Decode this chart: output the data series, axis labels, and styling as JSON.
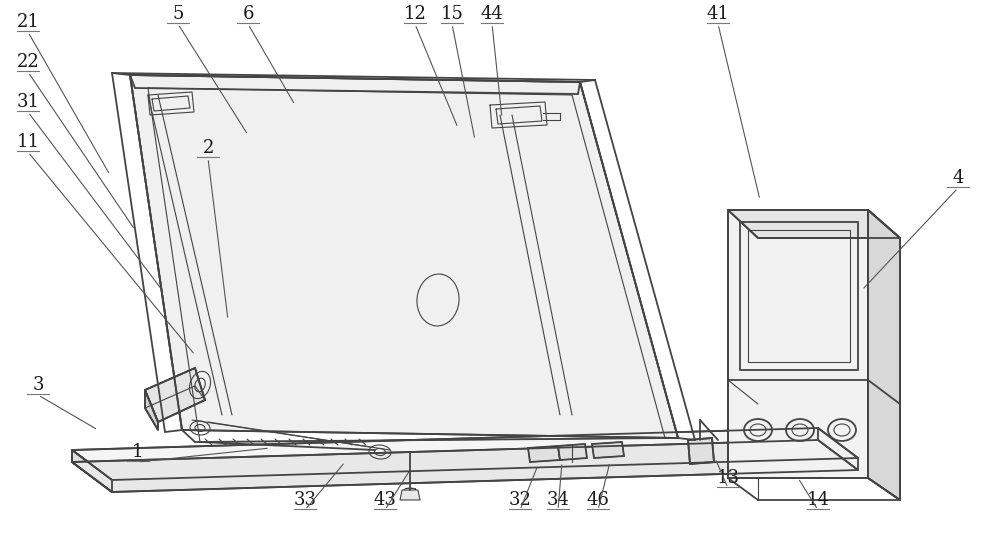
{
  "bg_color": "#ffffff",
  "lc": "#444444",
  "lw": 1.3,
  "lw_thin": 0.8,
  "figsize": [
    10.0,
    5.58
  ],
  "dpi": 100,
  "label_fontsize": 13,
  "label_color": "#1a1a1a",
  "ul_color": "#777777",
  "ld_color": "#555555",
  "labels": [
    [
      "21",
      28,
      22,
      110,
      175
    ],
    [
      "22",
      28,
      62,
      135,
      230
    ],
    [
      "31",
      28,
      102,
      162,
      290
    ],
    [
      "11",
      28,
      142,
      195,
      355
    ],
    [
      "5",
      178,
      14,
      248,
      135
    ],
    [
      "6",
      248,
      14,
      295,
      105
    ],
    [
      "12",
      415,
      14,
      458,
      128
    ],
    [
      "15",
      452,
      14,
      475,
      140
    ],
    [
      "44",
      492,
      14,
      502,
      118
    ],
    [
      "41",
      718,
      14,
      760,
      200
    ],
    [
      "2",
      208,
      148,
      228,
      320
    ],
    [
      "4",
      958,
      178,
      862,
      290
    ],
    [
      "3",
      38,
      385,
      98,
      430
    ],
    [
      "1",
      138,
      452,
      270,
      448
    ],
    [
      "33",
      305,
      500,
      345,
      462
    ],
    [
      "43",
      385,
      500,
      410,
      470
    ],
    [
      "32",
      520,
      500,
      538,
      465
    ],
    [
      "34",
      558,
      500,
      562,
      462
    ],
    [
      "46",
      598,
      500,
      610,
      462
    ],
    [
      "13",
      728,
      478,
      715,
      458
    ],
    [
      "14",
      818,
      500,
      798,
      478
    ]
  ]
}
